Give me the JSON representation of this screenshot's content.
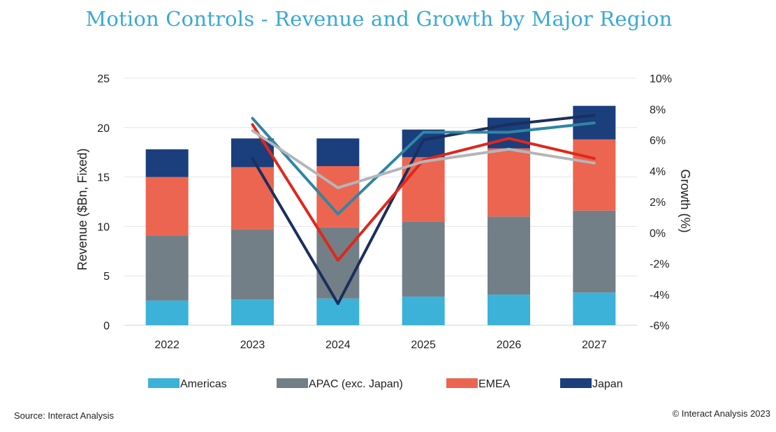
{
  "chart_data": {
    "type": "bar",
    "stacked": true,
    "title": "Motion Controls - Revenue and Growth by Major Region",
    "ylabel": "Revenue ($Bn, Fixed)",
    "y2label": "Growth (%)",
    "categories": [
      "2022",
      "2023",
      "2024",
      "2025",
      "2026",
      "2027"
    ],
    "ylim": [
      0,
      25
    ],
    "yticks": [
      "0",
      "5",
      "10",
      "15",
      "20",
      "25"
    ],
    "y2lim": [
      -6,
      10
    ],
    "y2ticks": [
      "-6%",
      "-4%",
      "-2%",
      "0%",
      "2%",
      "4%",
      "6%",
      "8%",
      "10%"
    ],
    "grid": true,
    "legend_position": "bottom",
    "series": [
      {
        "name": "Americas",
        "color": "#3cb2d8",
        "values": [
          2.5,
          2.6,
          2.7,
          2.9,
          3.1,
          3.3
        ]
      },
      {
        "name": "APAC (exc. Japan)",
        "color": "#737f86",
        "values": [
          6.6,
          7.1,
          7.2,
          7.6,
          7.9,
          8.3
        ]
      },
      {
        "name": "EMEA",
        "color": "#ec6550",
        "values": [
          5.9,
          6.3,
          6.2,
          6.5,
          6.9,
          7.2
        ]
      },
      {
        "name": "Japan",
        "color": "#1b3e7c",
        "values": [
          2.8,
          2.9,
          2.8,
          2.8,
          3.1,
          3.4
        ]
      }
    ],
    "growth_lines": [
      {
        "color": "#1a2f5e",
        "values": [
          null,
          4.8,
          -4.6,
          6.0,
          7.0,
          7.6
        ]
      },
      {
        "color": "#2f86a3",
        "values": [
          null,
          7.4,
          1.2,
          6.5,
          6.5,
          7.1
        ]
      },
      {
        "color": "#e0271b",
        "values": [
          null,
          7.0,
          -1.8,
          4.7,
          6.1,
          4.8
        ]
      },
      {
        "color": "#b2b6b9",
        "values": [
          null,
          6.6,
          2.9,
          4.6,
          5.4,
          4.5
        ]
      }
    ]
  },
  "source": "Source: Interact Analysis",
  "copyright": "© Interact Analysis 2023"
}
